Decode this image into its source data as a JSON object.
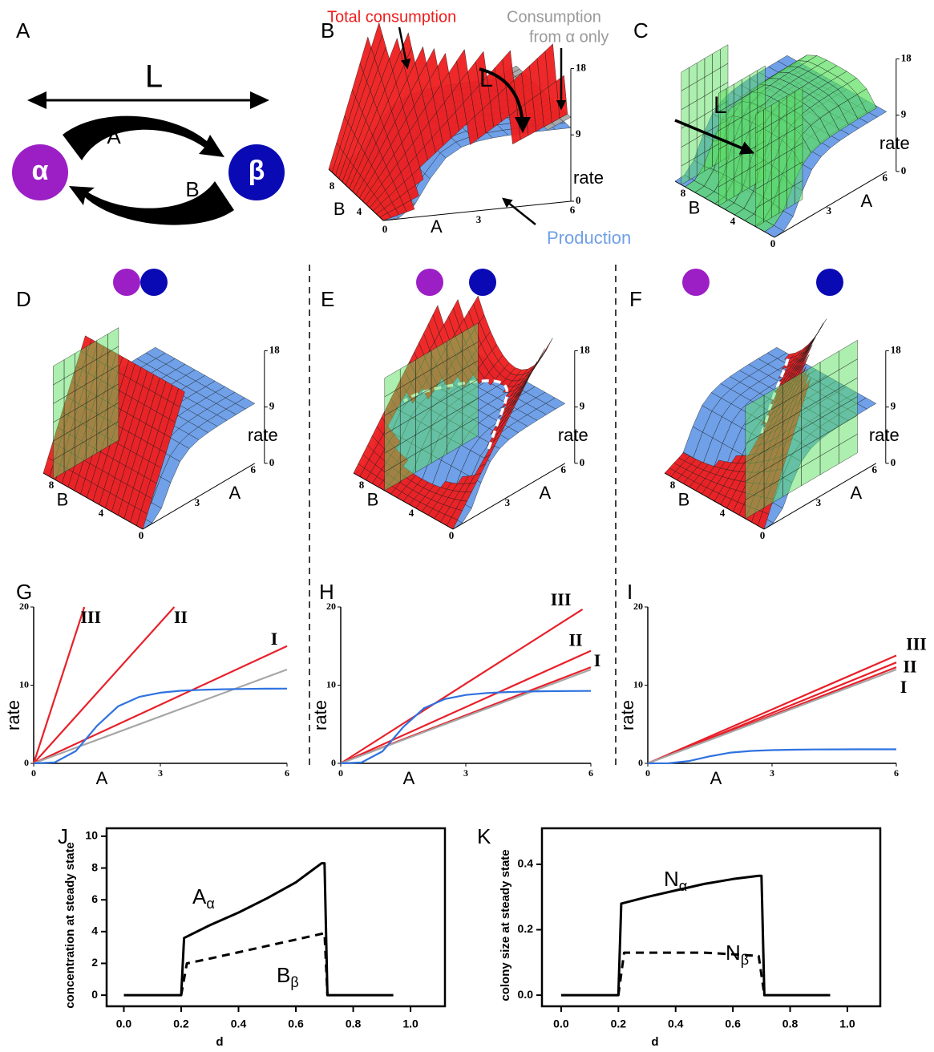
{
  "panels": {
    "A": {
      "label": "A",
      "distance": "L",
      "left_node": "α",
      "right_node": "β",
      "top_arrow": "A",
      "bottom_arrow": "B"
    },
    "B": {
      "label": "B",
      "total_consumption": "Total consumption",
      "alpha_only": [
        "Consumption",
        "from α only"
      ],
      "production": "Production",
      "distance": "L",
      "rate_label": "rate",
      "rate_ticks": [
        0,
        9,
        18
      ],
      "a_label": "A",
      "a_ticks": [
        0,
        3,
        6
      ],
      "b_label": "B",
      "b_ticks": [
        4,
        8
      ]
    },
    "C": {
      "label": "C",
      "distance": "L",
      "rate_label": "rate",
      "rate_ticks": [
        0,
        9,
        18
      ],
      "a_label": "A",
      "a_ticks": [
        0,
        3,
        6
      ],
      "b_label": "B",
      "b_ticks": [
        4,
        8
      ]
    },
    "D": {
      "label": "D",
      "rate_label": "rate",
      "rate_ticks": [
        0,
        9,
        18
      ],
      "a_label": "A",
      "a_ticks": [
        0,
        3,
        6
      ],
      "b_label": "B",
      "b_ticks": [
        4,
        8
      ]
    },
    "E": {
      "label": "E",
      "rate_label": "rate",
      "rate_ticks": [
        0,
        9,
        18
      ],
      "a_label": "A",
      "a_ticks": [
        0,
        3,
        6
      ],
      "b_label": "B",
      "b_ticks": [
        4,
        8
      ]
    },
    "F": {
      "label": "F",
      "rate_label": "rate",
      "rate_ticks": [
        0,
        9,
        18
      ],
      "a_label": "A",
      "a_ticks": [
        0,
        3,
        6
      ],
      "b_label": "B",
      "b_ticks": [
        4,
        8
      ]
    }
  },
  "chart_data": [
    {
      "type": "line",
      "label": "G",
      "xlabel": "A",
      "ylabel": "rate",
      "xlim": [
        0,
        6
      ],
      "ylim": [
        0,
        20
      ],
      "xticks": [
        0,
        3,
        6
      ],
      "yticks": [
        0,
        10,
        20
      ],
      "series": [
        {
          "name": "III",
          "color": "#e8202a",
          "x": [
            0,
            1.2
          ],
          "values": [
            0,
            20
          ]
        },
        {
          "name": "II",
          "color": "#e8202a",
          "x": [
            0,
            3.33
          ],
          "values": [
            0,
            20
          ]
        },
        {
          "name": "I",
          "color": "#e8202a",
          "x": [
            0,
            6
          ],
          "values": [
            0,
            15
          ]
        },
        {
          "color": "#a6a6a6",
          "x": [
            0,
            6
          ],
          "values": [
            0,
            12
          ]
        },
        {
          "color": "#2f72e0",
          "x": [
            0,
            0.5,
            1,
            1.5,
            2,
            2.5,
            3,
            3.5,
            4,
            4.5,
            5,
            5.5,
            6
          ],
          "values": [
            0,
            0.12,
            1.58,
            4.8,
            7.29,
            8.5,
            9.04,
            9.29,
            9.41,
            9.48,
            9.52,
            9.55,
            9.56
          ]
        }
      ]
    },
    {
      "type": "line",
      "label": "H",
      "xlabel": "A",
      "ylabel": "rate",
      "xlim": [
        0,
        6
      ],
      "ylim": [
        0,
        20
      ],
      "xticks": [
        0,
        3,
        6
      ],
      "yticks": [
        0,
        10,
        20
      ],
      "series": [
        {
          "name": "III",
          "color": "#e8202a",
          "x": [
            0,
            5.8
          ],
          "values": [
            0,
            19.7
          ]
        },
        {
          "name": "II",
          "color": "#e8202a",
          "x": [
            0,
            6
          ],
          "values": [
            0,
            14.4
          ]
        },
        {
          "name": "I",
          "color": "#e8202a",
          "x": [
            0,
            6
          ],
          "values": [
            0,
            12.3
          ]
        },
        {
          "color": "#a6a6a6",
          "x": [
            0,
            6
          ],
          "values": [
            0,
            12
          ]
        },
        {
          "color": "#2f72e0",
          "x": [
            0,
            0.5,
            1,
            1.5,
            2,
            2.5,
            3,
            3.5,
            4,
            4.5,
            5,
            5.5,
            6
          ],
          "values": [
            0,
            0.11,
            1.53,
            4.65,
            7.07,
            8.23,
            8.75,
            9.0,
            9.12,
            9.19,
            9.23,
            9.25,
            9.26
          ]
        }
      ]
    },
    {
      "type": "line",
      "label": "I",
      "xlabel": "A",
      "ylabel": "rate",
      "xlim": [
        0,
        6
      ],
      "ylim": [
        0,
        20
      ],
      "xticks": [
        0,
        3,
        6
      ],
      "yticks": [
        0,
        10,
        20
      ],
      "series": [
        {
          "name": "III",
          "color": "#e8202a",
          "x": [
            0,
            6
          ],
          "values": [
            0,
            13.8
          ]
        },
        {
          "name": "II",
          "color": "#e8202a",
          "x": [
            0,
            6
          ],
          "values": [
            0,
            12.9
          ]
        },
        {
          "name": "I",
          "color": "#e8202a",
          "x": [
            0,
            6
          ],
          "values": [
            0,
            12.3
          ]
        },
        {
          "color": "#a6a6a6",
          "x": [
            0,
            6
          ],
          "values": [
            0,
            12
          ]
        },
        {
          "color": "#2f72e0",
          "x": [
            0,
            0.5,
            1,
            1.5,
            2,
            2.5,
            3,
            3.5,
            4,
            4.5,
            5,
            5.5,
            6
          ],
          "values": [
            0,
            0.02,
            0.3,
            0.9,
            1.37,
            1.59,
            1.69,
            1.74,
            1.77,
            1.78,
            1.79,
            1.79,
            1.79
          ]
        }
      ]
    },
    {
      "type": "line",
      "label": "J",
      "xlabel": "d",
      "ylabel": "concentration at steady state",
      "frame": true,
      "xlim": [
        -0.06,
        1.12
      ],
      "ylim": [
        -0.7,
        10.5
      ],
      "xticks": [
        {
          "value": 0,
          "label": "0.0"
        },
        0.2,
        0.4,
        0.6,
        0.8,
        {
          "value": 1,
          "label": "1.0"
        }
      ],
      "yticks": [
        0,
        2,
        4,
        6,
        8,
        10
      ],
      "series": [
        {
          "color": "#000000",
          "line_style": "solid",
          "x": [
            0,
            0.2,
            0.21,
            0.3,
            0.4,
            0.5,
            0.6,
            0.69,
            0.7,
            0.71,
            0.94
          ],
          "values": [
            0,
            0,
            3.6,
            4.4,
            5.2,
            6.1,
            7.1,
            8.3,
            8.3,
            0,
            0
          ]
        },
        {
          "color": "#000000",
          "line_style": "dashed",
          "x": [
            0.2,
            0.22,
            0.3,
            0.4,
            0.5,
            0.6,
            0.7,
            0.71
          ],
          "values": [
            0,
            2.0,
            2.3,
            2.7,
            3.1,
            3.5,
            3.9,
            0
          ]
        }
      ],
      "annotations": [
        {
          "text": "A",
          "subscript": "α"
        },
        {
          "text": "B",
          "subscript": "β"
        }
      ]
    },
    {
      "type": "line",
      "label": "K",
      "xlabel": "d",
      "ylabel": "colony size at steady state",
      "frame": true,
      "xlim": [
        -0.067,
        1.115
      ],
      "ylim": [
        -0.034,
        0.51
      ],
      "xticks": [
        {
          "value": 0,
          "label": "0.0"
        },
        0.2,
        0.4,
        0.6,
        0.8,
        {
          "value": 1,
          "label": "1.0"
        }
      ],
      "yticks": [
        {
          "value": 0,
          "label": "0.0"
        },
        0.2,
        0.4
      ],
      "series": [
        {
          "color": "#000000",
          "line_style": "solid",
          "x": [
            0,
            0.2,
            0.21,
            0.3,
            0.4,
            0.5,
            0.6,
            0.69,
            0.7,
            0.71,
            0.94
          ],
          "values": [
            0,
            0,
            0.28,
            0.3,
            0.32,
            0.34,
            0.355,
            0.365,
            0.365,
            0,
            0
          ]
        },
        {
          "color": "#000000",
          "line_style": "dashed",
          "x": [
            0.2,
            0.22,
            0.3,
            0.4,
            0.5,
            0.6,
            0.69,
            0.71
          ],
          "values": [
            0,
            0.13,
            0.13,
            0.13,
            0.13,
            0.125,
            0.12,
            0
          ]
        }
      ],
      "annotations": [
        {
          "text": "N",
          "subscript": "α"
        },
        {
          "text": "N",
          "subscript": "β"
        }
      ]
    }
  ]
}
